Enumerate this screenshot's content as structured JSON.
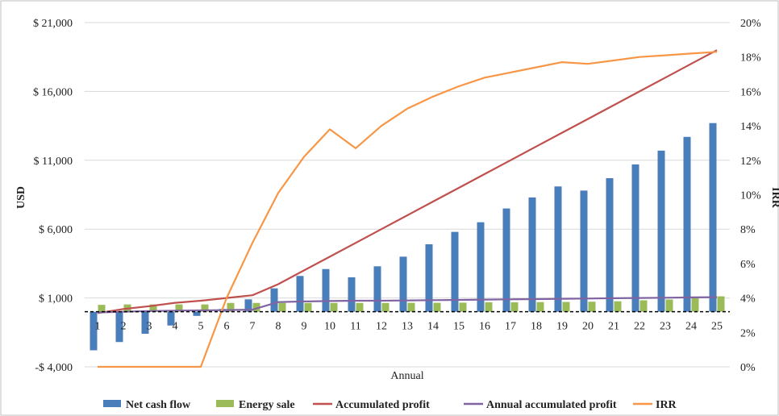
{
  "chart_data": {
    "type": "bar",
    "title": "",
    "xlabel": "Annual",
    "ylabel": "USD",
    "y2label": "IRR",
    "categories": [
      "1",
      "2",
      "3",
      "4",
      "5",
      "6",
      "7",
      "8",
      "9",
      "10",
      "11",
      "12",
      "13",
      "14",
      "15",
      "16",
      "17",
      "18",
      "19",
      "20",
      "21",
      "22",
      "23",
      "24",
      "25"
    ],
    "ylim": [
      -4000,
      21000
    ],
    "y_ticks": [
      -4000,
      1000,
      6000,
      11000,
      16000,
      21000
    ],
    "y_tick_labels": [
      "-$ 4,000",
      "$ 1,000",
      "$ 6,000",
      "$ 11,000",
      "$ 16,000",
      "$ 21,000"
    ],
    "y2lim": [
      0,
      20
    ],
    "y2_ticks": [
      0,
      2,
      4,
      6,
      8,
      10,
      12,
      14,
      16,
      18,
      20
    ],
    "y2_tick_labels": [
      "0%",
      "2%",
      "4%",
      "6%",
      "8%",
      "10%",
      "12%",
      "14%",
      "16%",
      "18%",
      "20%"
    ],
    "grid": true,
    "legend_position": "bottom",
    "series": [
      {
        "name": "Net cash flow",
        "kind": "bar",
        "axis": "left",
        "color": "#4a7ebb",
        "values": [
          -2800,
          -2200,
          -1600,
          -1000,
          -300,
          200,
          900,
          1700,
          2600,
          3100,
          2500,
          3300,
          4000,
          4900,
          5800,
          6500,
          7500,
          8300,
          9100,
          8800,
          9700,
          10700,
          11700,
          12700,
          13700
        ]
      },
      {
        "name": "Energy sale",
        "kind": "bar",
        "axis": "left",
        "color": "#9bbb59",
        "values": [
          500,
          530,
          530,
          530,
          530,
          640,
          640,
          640,
          640,
          640,
          640,
          640,
          650,
          650,
          660,
          690,
          690,
          700,
          710,
          730,
          760,
          830,
          890,
          980,
          1120
        ]
      },
      {
        "name": "Accumulated profit",
        "kind": "line",
        "axis": "left",
        "color": "#c0504d",
        "values": [
          -100,
          200,
          400,
          650,
          800,
          1000,
          1200,
          2000,
          3000,
          4000,
          5000,
          6000,
          7000,
          8000,
          9000,
          10000,
          11000,
          12000,
          13000,
          14000,
          15000,
          16000,
          17000,
          18000,
          19000
        ]
      },
      {
        "name": "Annual accumulated profit",
        "kind": "line",
        "axis": "left",
        "color": "#8064a2",
        "values": [
          -50,
          0,
          50,
          80,
          100,
          120,
          150,
          700,
          750,
          780,
          800,
          800,
          820,
          840,
          860,
          880,
          900,
          920,
          940,
          960,
          980,
          1000,
          1020,
          1040,
          1060
        ]
      },
      {
        "name": "IRR",
        "kind": "line",
        "axis": "right",
        "color": "#f79646",
        "values": [
          0,
          0,
          0,
          0,
          0,
          4,
          7.2,
          10.1,
          12.2,
          13.8,
          12.7,
          14,
          15,
          15.7,
          16.3,
          16.8,
          17.1,
          17.4,
          17.7,
          17.6,
          17.8,
          18,
          18.1,
          18.2,
          18.3
        ]
      }
    ]
  }
}
